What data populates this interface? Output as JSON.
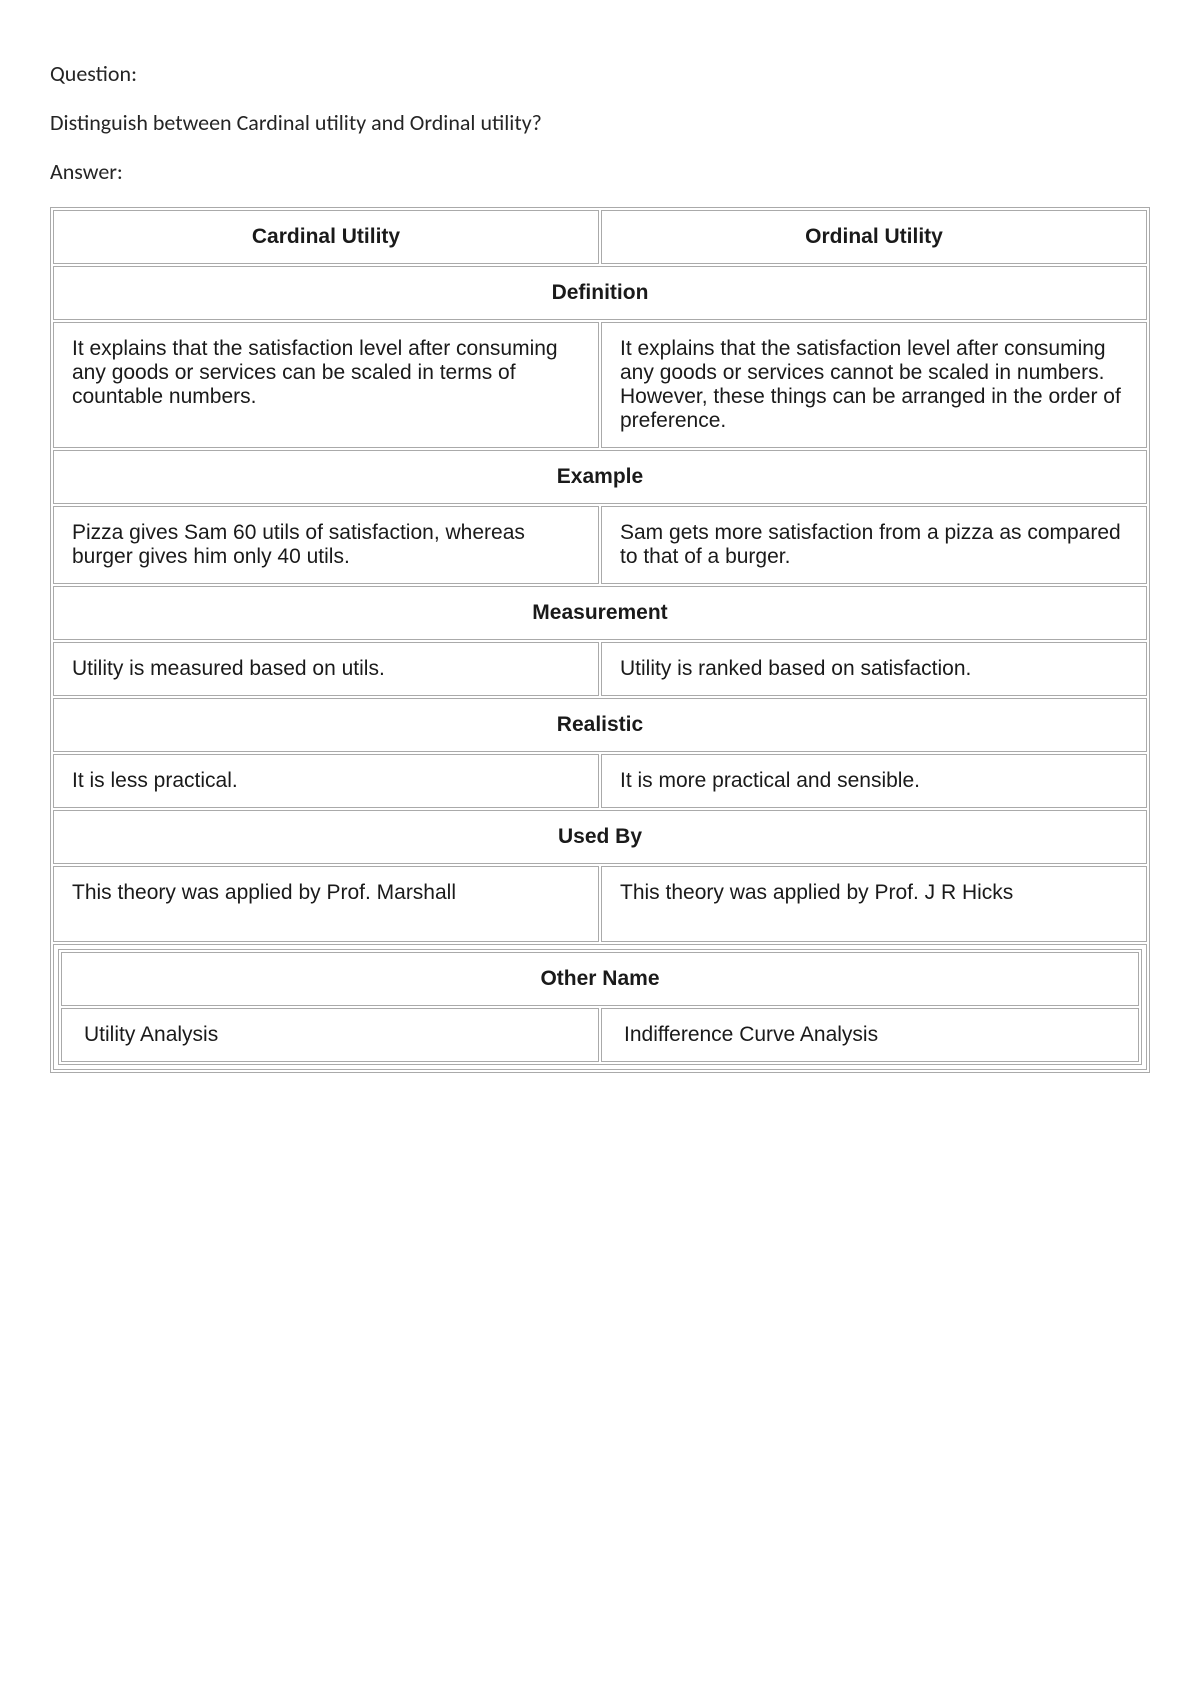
{
  "labels": {
    "question_label": "Question:",
    "answer_label": "Answer:"
  },
  "question_text": "Distinguish between Cardinal utility and Ordinal utility?",
  "table": {
    "columns": [
      "Cardinal Utility",
      "Ordinal Utility"
    ],
    "rows": [
      {
        "category": "Definition",
        "left": "It explains that the satisfaction level after consuming any goods or services can be scaled in terms of countable numbers.",
        "right": "It explains that the satisfaction level after consuming any goods or services cannot be scaled in numbers. However, these things can be arranged in the order of preference."
      },
      {
        "category": "Example",
        "left": "Pizza gives Sam 60 utils of satisfaction, whereas burger gives him only 40 utils.",
        "right": "Sam gets more satisfaction from a pizza as compared to that of a burger."
      },
      {
        "category": "Measurement",
        "left": "Utility is measured based on utils.",
        "right": "Utility is ranked based on satisfaction."
      },
      {
        "category": "Realistic",
        "left": "It is less practical.",
        "right": "It is more practical and sensible."
      },
      {
        "category": "Used By",
        "left": "This theory was applied by Prof. Marshall",
        "right": "This theory was applied by Prof. J R Hicks"
      }
    ],
    "inner_row": {
      "category": "Other Name",
      "left": "Utility Analysis",
      "right": "Indifference Curve Analysis"
    },
    "styling": {
      "border_color": "#aaaaaa",
      "background_color": "#ffffff",
      "header_fontsize": 21,
      "body_fontsize": 21,
      "font_family": "Arial"
    }
  }
}
